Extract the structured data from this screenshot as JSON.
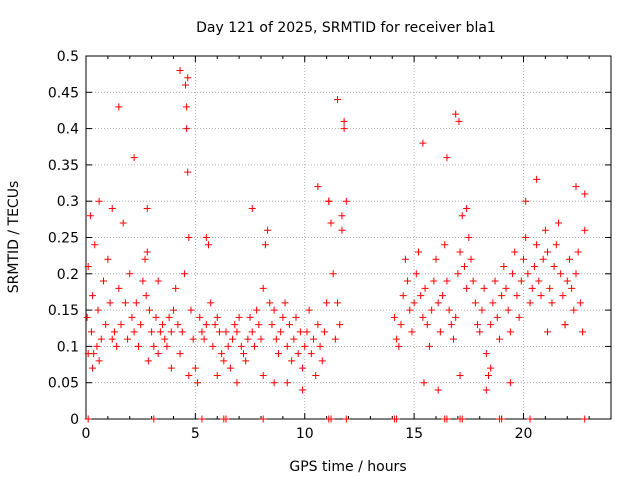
{
  "chart_data": {
    "type": "scatter",
    "title": "Day 121 of 2025, SRMTID for receiver bla1",
    "xlabel": "GPS time / hours",
    "ylabel": "SRMTID / TECUs",
    "xlim": [
      0,
      24
    ],
    "ylim": [
      0,
      0.5
    ],
    "x_ticks": [
      0,
      5,
      10,
      15,
      20
    ],
    "x_tick_labels": [
      "0",
      "5",
      "10",
      "15",
      "20"
    ],
    "y_ticks": [
      0,
      0.05,
      0.1,
      0.15,
      0.2,
      0.25,
      0.3,
      0.35,
      0.4,
      0.45,
      0.5
    ],
    "y_tick_labels": [
      "0",
      "0.05",
      "0.1",
      "0.15",
      "0.2",
      "0.25",
      "0.3",
      "0.35",
      "0.4",
      "0.45",
      "0.5"
    ],
    "grid": true,
    "marker": "+",
    "series": [
      {
        "name": "SRMTID",
        "color": "#ff0000",
        "x": [
          0.05,
          0.1,
          0.2,
          0.25,
          0.3,
          0.35,
          0.4,
          0.5,
          0.55,
          0.6,
          0.7,
          0.8,
          0.9,
          1.0,
          1.1,
          1.2,
          1.3,
          1.4,
          1.5,
          1.6,
          1.7,
          1.8,
          1.9,
          2.0,
          2.1,
          2.2,
          2.3,
          2.4,
          2.5,
          2.6,
          2.7,
          2.75,
          2.8,
          2.9,
          3.0,
          3.1,
          3.2,
          3.3,
          3.4,
          3.5,
          3.6,
          3.7,
          3.8,
          3.9,
          4.0,
          4.1,
          4.2,
          4.3,
          4.4,
          4.5,
          4.55,
          4.6,
          4.65,
          4.7,
          4.8,
          4.9,
          5.0,
          5.1,
          5.2,
          5.3,
          5.4,
          5.5,
          5.6,
          5.7,
          5.8,
          5.9,
          6.0,
          6.1,
          6.2,
          6.3,
          6.4,
          6.5,
          6.6,
          6.7,
          6.8,
          6.9,
          7.0,
          7.1,
          7.2,
          7.3,
          7.4,
          7.5,
          7.6,
          7.7,
          7.8,
          7.9,
          8.0,
          8.1,
          8.2,
          8.3,
          8.4,
          8.5,
          8.6,
          8.7,
          8.8,
          8.9,
          9.0,
          9.1,
          9.2,
          9.3,
          9.4,
          9.5,
          9.6,
          9.7,
          9.8,
          9.9,
          10.0,
          10.1,
          10.2,
          10.3,
          10.4,
          10.5,
          10.6,
          10.7,
          10.8,
          10.9,
          11.0,
          11.1,
          11.2,
          11.3,
          11.4,
          11.5,
          11.6,
          11.7,
          11.8,
          11.9,
          14.1,
          14.2,
          14.3,
          14.4,
          14.5,
          14.6,
          14.7,
          14.8,
          14.9,
          15.0,
          15.1,
          15.2,
          15.3,
          15.4,
          15.5,
          15.6,
          15.7,
          15.8,
          15.9,
          16.0,
          16.1,
          16.2,
          16.3,
          16.4,
          16.5,
          16.6,
          16.7,
          16.8,
          16.9,
          17.0,
          17.1,
          17.2,
          17.3,
          17.4,
          17.5,
          17.6,
          17.7,
          17.8,
          17.9,
          18.0,
          18.1,
          18.2,
          18.3,
          18.4,
          18.5,
          18.6,
          18.7,
          18.8,
          18.9,
          19.0,
          19.1,
          19.2,
          19.3,
          19.4,
          19.5,
          19.6,
          19.7,
          19.8,
          19.9,
          20.0,
          20.1,
          20.2,
          20.3,
          20.4,
          20.5,
          20.6,
          20.7,
          20.8,
          20.9,
          21.0,
          21.1,
          21.2,
          21.3,
          21.4,
          21.5,
          21.6,
          21.7,
          21.8,
          21.9,
          22.0,
          22.1,
          22.2,
          22.3,
          22.4,
          22.5,
          22.6,
          22.7,
          22.8,
          0.1,
          0.3,
          0.6,
          1.2,
          1.5,
          2.2,
          2.8,
          2.85,
          3.3,
          3.9,
          4.3,
          4.6,
          4.65,
          4.7,
          5.5,
          6.0,
          6.9,
          7.6,
          8.1,
          8.6,
          9.2,
          9.9,
          10.6,
          11.1,
          11.5,
          11.7,
          11.8,
          15.4,
          15.45,
          16.1,
          16.5,
          16.9,
          17.05,
          17.1,
          17.4,
          18.3,
          18.5,
          19.4,
          20.1,
          20.6,
          21.1,
          21.6,
          21.9,
          22.4,
          22.8,
          0.1,
          3.1,
          5.3,
          6.3,
          6.4,
          8.1,
          11.1,
          11.2,
          11.9,
          14.1,
          14.2,
          16.4,
          16.5,
          17.1,
          17.2,
          18.9,
          19.0,
          20.3,
          22.8
        ],
        "y": [
          0.14,
          0.21,
          0.28,
          0.12,
          0.17,
          0.09,
          0.24,
          0.1,
          0.15,
          0.08,
          0.11,
          0.19,
          0.13,
          0.22,
          0.16,
          0.29,
          0.12,
          0.1,
          0.18,
          0.13,
          0.27,
          0.16,
          0.11,
          0.2,
          0.14,
          0.12,
          0.16,
          0.1,
          0.13,
          0.19,
          0.22,
          0.17,
          0.23,
          0.15,
          0.12,
          0.1,
          0.14,
          0.09,
          0.12,
          0.13,
          0.11,
          0.1,
          0.14,
          0.12,
          0.15,
          0.18,
          0.13,
          0.09,
          0.12,
          0.2,
          0.46,
          0.43,
          0.34,
          0.25,
          0.15,
          0.11,
          0.07,
          0.05,
          0.14,
          0.12,
          0.11,
          0.13,
          0.24,
          0.16,
          0.1,
          0.13,
          0.14,
          0.12,
          0.09,
          0.08,
          0.12,
          0.1,
          0.07,
          0.11,
          0.13,
          0.12,
          0.14,
          0.1,
          0.09,
          0.08,
          0.11,
          0.14,
          0.12,
          0.1,
          0.15,
          0.13,
          0.11,
          0.18,
          0.24,
          0.26,
          0.16,
          0.13,
          0.15,
          0.11,
          0.09,
          0.12,
          0.14,
          0.16,
          0.1,
          0.13,
          0.08,
          0.11,
          0.14,
          0.09,
          0.12,
          0.07,
          0.1,
          0.12,
          0.15,
          0.09,
          0.11,
          0.06,
          0.13,
          0.1,
          0.08,
          0.12,
          0.16,
          0.3,
          0.27,
          0.2,
          0.11,
          0.16,
          0.13,
          0.28,
          0.41,
          0.3,
          0.14,
          0.11,
          0.1,
          0.13,
          0.17,
          0.22,
          0.19,
          0.15,
          0.12,
          0.16,
          0.2,
          0.23,
          0.17,
          0.14,
          0.18,
          0.13,
          0.1,
          0.15,
          0.19,
          0.22,
          0.16,
          0.12,
          0.17,
          0.24,
          0.19,
          0.15,
          0.13,
          0.11,
          0.14,
          0.2,
          0.23,
          0.28,
          0.21,
          0.18,
          0.25,
          0.22,
          0.19,
          0.16,
          0.13,
          0.12,
          0.15,
          0.18,
          0.09,
          0.06,
          0.13,
          0.16,
          0.19,
          0.14,
          0.11,
          0.17,
          0.21,
          0.18,
          0.15,
          0.12,
          0.2,
          0.23,
          0.17,
          0.14,
          0.19,
          0.22,
          0.25,
          0.2,
          0.16,
          0.18,
          0.21,
          0.24,
          0.19,
          0.17,
          0.22,
          0.26,
          0.23,
          0.18,
          0.16,
          0.21,
          0.24,
          0.27,
          0.2,
          0.17,
          0.13,
          0.19,
          0.22,
          0.18,
          0.15,
          0.2,
          0.23,
          0.16,
          0.12,
          0.26,
          0.09,
          0.07,
          0.3,
          0.11,
          0.43,
          0.36,
          0.29,
          0.08,
          0.19,
          0.07,
          0.48,
          0.4,
          0.47,
          0.06,
          0.25,
          0.06,
          0.05,
          0.29,
          0.06,
          0.05,
          0.05,
          0.04,
          0.32,
          0.3,
          0.44,
          0.26,
          0.4,
          0.38,
          0.05,
          0.04,
          0.36,
          0.42,
          0.41,
          0.06,
          0.29,
          0.04,
          0.07,
          0.05,
          0.3,
          0.33,
          0.12,
          0.27,
          0.13,
          0.32,
          0.31,
          0,
          0,
          0,
          0,
          0,
          0,
          0,
          0,
          0,
          0,
          0,
          0,
          0,
          0,
          0,
          0,
          0,
          0,
          0
        ]
      }
    ]
  }
}
